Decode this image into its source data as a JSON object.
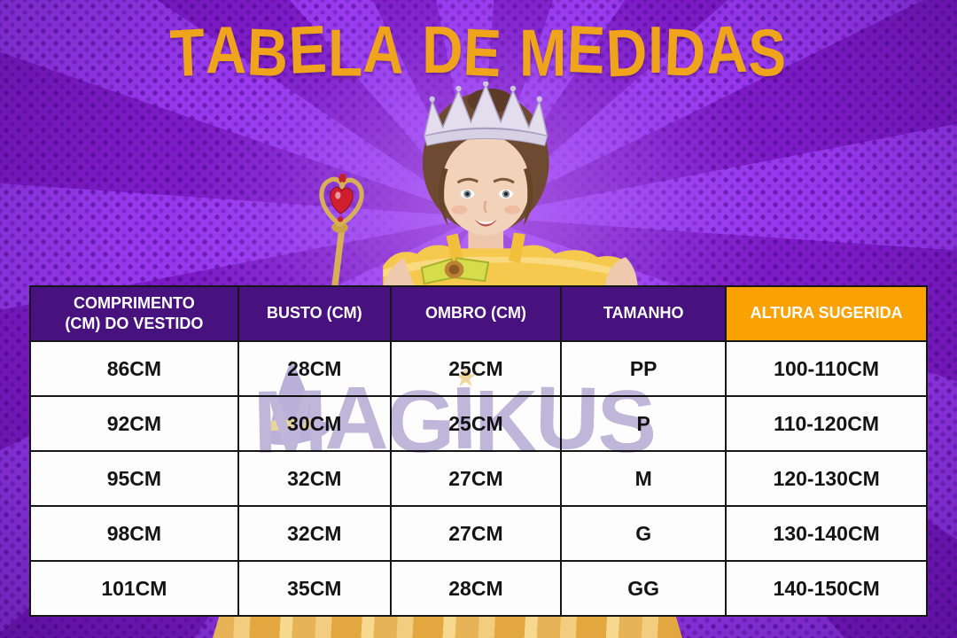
{
  "page": {
    "title": "TABELA DE MEDIDAS"
  },
  "watermark": {
    "text": "MAGIKUS",
    "star_glyph": "★"
  },
  "chart_data": {
    "type": "table",
    "title": "TABELA DE MEDIDAS",
    "columns": [
      "COMPRIMENTO (CM) DO VESTIDO",
      "BUSTO (CM)",
      "OMBRO (CM)",
      "TAMANHO",
      "ALTURA SUGERIDA"
    ],
    "rows": [
      [
        "86CM",
        "28CM",
        "25CM",
        "PP",
        "100-110CM"
      ],
      [
        "92CM",
        "30CM",
        "25CM",
        "P",
        "110-120CM"
      ],
      [
        "95CM",
        "32CM",
        "27CM",
        "M",
        "120-130CM"
      ],
      [
        "98CM",
        "32CM",
        "27CM",
        "G",
        "130-140CM"
      ],
      [
        "101CM",
        "35CM",
        "28CM",
        "GG",
        "140-150CM"
      ]
    ],
    "highlight_column": "ALTURA SUGERIDA",
    "layout": {
      "grid": "on",
      "header_style": "purple, last column orange"
    }
  },
  "colors": {
    "title_gold": "#F0A41B",
    "header_purple": "#47117E",
    "header_orange": "#F9A201",
    "bg_ray_light": "#9639EC",
    "bg_ray_dark": "#7D1CC6",
    "watermark_lavender": "#8F7DC0",
    "table_text": "#141414"
  }
}
